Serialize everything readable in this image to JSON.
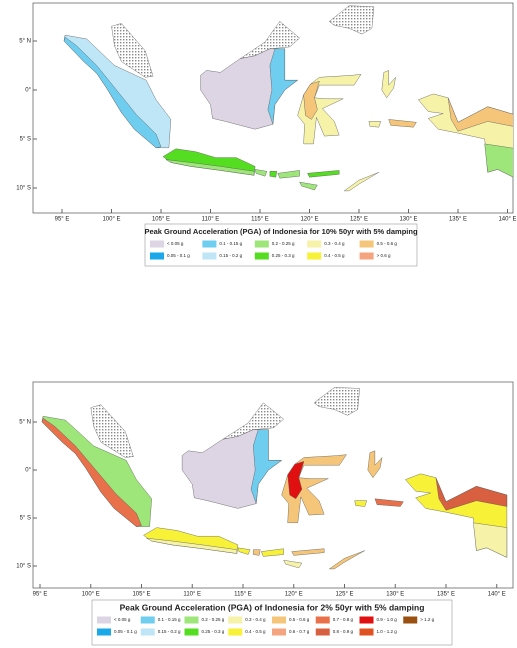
{
  "maps": [
    {
      "lat_labels": [
        "5° N",
        "0°",
        "5° S",
        "10° S"
      ],
      "lon_labels": [
        "95° E",
        "100° E",
        "105° E",
        "110° E",
        "115° E",
        "120° E",
        "125° E",
        "130° E",
        "135° E",
        "140° E"
      ],
      "legend": {
        "title": "Peak Ground Acceleration (PGA) of Indonesia for 10% 50yr with 5% damping",
        "items": [
          {
            "label": "< 0.05 g",
            "color": "#ddd4e4"
          },
          {
            "label": "0.1 - 0.15 g",
            "color": "#6fcdf0"
          },
          {
            "label": "0.2 - 0.25 g",
            "color": "#9ee67a"
          },
          {
            "label": "0.3 - 0.4 g",
            "color": "#f6f2a8"
          },
          {
            "label": "0.5 - 0.6 g",
            "color": "#f5c67a"
          },
          {
            "label": "0.05 - 0.1 g",
            "color": "#1aa8e8"
          },
          {
            "label": "0.15 - 0.2 g",
            "color": "#bfe6f6"
          },
          {
            "label": "0.25 - 0.3 g",
            "color": "#55dd22"
          },
          {
            "label": "0.4 - 0.5 g",
            "color": "#f7f238"
          },
          {
            "label": "> 0.6 g",
            "color": "#f4a57f"
          }
        ]
      }
    },
    {
      "lat_labels": [
        "5° N",
        "0°",
        "5° S",
        "10° S"
      ],
      "lon_labels": [
        "95° E",
        "100° E",
        "105° E",
        "110° E",
        "115° E",
        "120° E",
        "125° E",
        "130° E",
        "135° E",
        "140° E"
      ],
      "legend": {
        "title": "Peak Ground Acceleration (PGA) of Indonesia for 2% 50yr with 5% damping",
        "items": [
          {
            "label": "< 0.05 g",
            "color": "#ddd4e4"
          },
          {
            "label": "0.1 - 0.15 g",
            "color": "#6fcdf0"
          },
          {
            "label": "0.2 - 0.25 g",
            "color": "#9ee67a"
          },
          {
            "label": "0.3 - 0.4 g",
            "color": "#f6f2a8"
          },
          {
            "label": "0.5 - 0.6 g",
            "color": "#f5c67a"
          },
          {
            "label": "0.7 - 0.8 g",
            "color": "#e8704a"
          },
          {
            "label": "0.9 - 1.0 g",
            "color": "#e01010"
          },
          {
            "label": "> 1.2 g",
            "color": "#9a5010"
          },
          {
            "label": "0.05 - 0.1 g",
            "color": "#1aa8e8"
          },
          {
            "label": "0.15 - 0.2 g",
            "color": "#bfe6f6"
          },
          {
            "label": "0.25 - 0.3 g",
            "color": "#55dd22"
          },
          {
            "label": "0.4 - 0.5 g",
            "color": "#f7f238"
          },
          {
            "label": "0.6 - 0.7 g",
            "color": "#f4a57f"
          },
          {
            "label": "0.8 - 0.9 g",
            "color": "#d86040"
          },
          {
            "label": "1.0 - 1.2 g",
            "color": "#e05020"
          }
        ]
      }
    }
  ]
}
